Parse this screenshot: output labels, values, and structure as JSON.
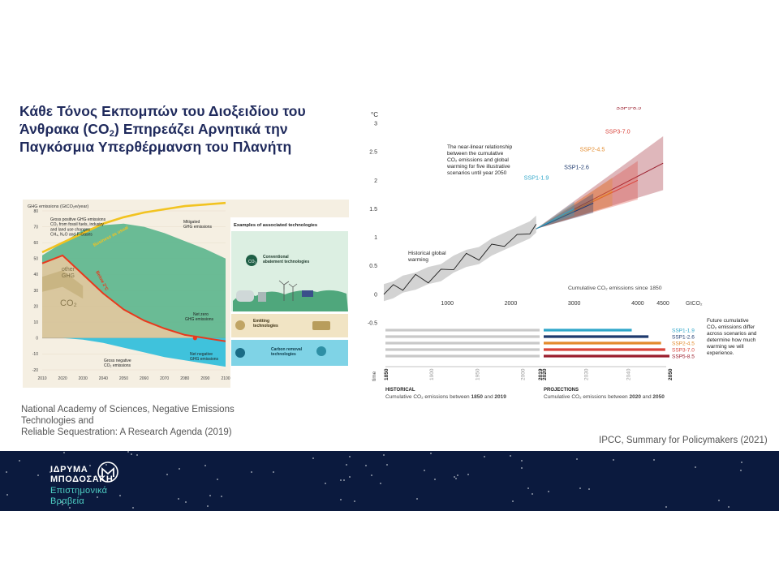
{
  "slide": {
    "title_part1": "Κάθε Τόνος Εκπομπών του Διοξειδίου του Άνθρακα (CO",
    "title_sub": "2",
    "title_part2": ") Επηρεάζει Αρνητικά την Παγκόσμια Υπερθέρμανση του Πλανήτη",
    "caption_left_1": "National Academy of Sciences, Negative Emissions",
    "caption_left_2": "Technologies and",
    "caption_left_3": "Reliable Sequestration: A Research Agenda (2019)",
    "caption_right": "IPCC, Summary for Policymakers (2021)"
  },
  "left_figure": {
    "ylabel": "GHG emissions (GtCO₂e/year)",
    "gross_positive": [
      "Gross positive GHG emissions",
      "CO₂ from fossil fuels, industry",
      "and land use changes",
      "CH₄, N₂O and F-Gases"
    ],
    "mitigated": [
      "Mitigated",
      "GHG emissions"
    ],
    "other_ghg": [
      "other",
      "GHG"
    ],
    "co2_label": "CO₂",
    "bau_label": "Business as usual",
    "below2_label": "Below 2°C",
    "net_zero": [
      "Net zero",
      "GHG emissions"
    ],
    "net_negative": [
      "Net negative",
      "GHG emissions"
    ],
    "gross_negative": [
      "Gross negative",
      "CO₂ emissions"
    ],
    "tech_header": "Examples of associated technologies",
    "tech_1": [
      "Conventional",
      "abatement technologies"
    ],
    "tech_2": [
      "Emitting",
      "technologies"
    ],
    "tech_3": [
      "Carbon removal",
      "technologies"
    ]
  },
  "right_figure": {
    "unit": "°C",
    "annotation": [
      "The near-linear relationship",
      "between the cumulative",
      "CO₂ emissions and global",
      "warming for five illustrative",
      "scenarios until year 2050"
    ],
    "historical_label": [
      "Historical global",
      "warming"
    ],
    "xaxis_caption": "Cumulative CO₂ emissions since 1850",
    "xunit": "GtCO₂",
    "future_note": [
      "Future cumulative",
      "CO₂ emissions differ",
      "across scenarios and",
      "determine how much",
      "warming we will",
      "experience."
    ],
    "time_label": "time",
    "historical_header": "HISTORICAL",
    "historical_caption_a": "Cumulative CO₂ emissions between ",
    "historical_caption_b": "1850",
    "historical_caption_c": " and ",
    "historical_caption_d": "2019",
    "projections_header": "PROJECTIONS",
    "projections_caption_a": "Cumulative CO₂ emissions between ",
    "projections_caption_b": "2020",
    "projections_caption_c": " and ",
    "projections_caption_d": "2050",
    "timeline_years": [
      "1850",
      "1900",
      "1950",
      "2000",
      "2019",
      "2020",
      "2030",
      "2040",
      "2050"
    ]
  },
  "chart_data": [
    {
      "type": "area",
      "title": "",
      "ylabel": "GHG emissions (GtCO₂e/year)",
      "x": [
        2010,
        2020,
        2030,
        2040,
        2050,
        2060,
        2070,
        2080,
        2090,
        2100
      ],
      "ylim": [
        -20,
        80
      ],
      "yticks": [
        -20,
        -10,
        0,
        10,
        20,
        30,
        40,
        50,
        60,
        70,
        80
      ],
      "series": [
        {
          "name": "Business as usual",
          "values": [
            54,
            60,
            66,
            72,
            76,
            79,
            81,
            83,
            84,
            85
          ]
        },
        {
          "name": "Gross positive GHG emissions",
          "values": [
            52,
            60,
            68,
            71,
            72,
            70,
            66,
            61,
            56,
            50
          ]
        },
        {
          "name": "Below 2°C",
          "values": [
            47,
            52,
            40,
            28,
            18,
            11,
            6,
            2,
            0,
            -2
          ]
        },
        {
          "name": "Gross negative CO₂ emissions",
          "values": [
            0,
            0,
            -1,
            -3,
            -6,
            -9,
            -12,
            -14,
            -16,
            -18
          ]
        }
      ]
    },
    {
      "type": "line",
      "title": "",
      "xlabel": "Cumulative CO₂ emissions since 1850",
      "ylabel": "°C",
      "xlim": [
        0,
        4500
      ],
      "ylim": [
        -0.5,
        3
      ],
      "xticks": [
        1000,
        2000,
        3000,
        4000,
        4500
      ],
      "yticks": [
        -0.5,
        0,
        0.5,
        1,
        1.5,
        2,
        2.5,
        3
      ],
      "series": [
        {
          "name": "Historical global warming",
          "x": [
            0,
            150,
            300,
            500,
            700,
            900,
            1100,
            1300,
            1500,
            1700,
            1900,
            2100,
            2300,
            2400
          ],
          "y": [
            0.0,
            0.05,
            0.15,
            0.2,
            0.3,
            0.35,
            0.5,
            0.6,
            0.65,
            0.8,
            0.9,
            1.0,
            1.1,
            1.2
          ]
        },
        {
          "name": "SSP1-1.9",
          "x": [
            2400,
            2700,
            3000
          ],
          "y": [
            1.15,
            1.35,
            1.5
          ]
        },
        {
          "name": "SSP1-2.6",
          "x": [
            2400,
            2900,
            3300
          ],
          "y": [
            1.15,
            1.4,
            1.6
          ]
        },
        {
          "name": "SSP2-4.5",
          "x": [
            2400,
            3000,
            3600
          ],
          "y": [
            1.15,
            1.45,
            1.8
          ]
        },
        {
          "name": "SSP3-7.0",
          "x": [
            2400,
            3200,
            4000
          ],
          "y": [
            1.15,
            1.55,
            2.0
          ]
        },
        {
          "name": "SSP5-8.5",
          "x": [
            2400,
            3300,
            4400
          ],
          "y": [
            1.15,
            1.6,
            2.3
          ]
        }
      ]
    }
  ],
  "footer": {
    "logo_line1": "ΙΔΡΥΜΑ",
    "logo_line2": "ΜΠΟΔΟΣΑΚΗ",
    "logo_line3": "Επιστημονικά",
    "logo_line4": "Βραβεία",
    "bg_color": "#0b1a3e",
    "accent_color": "#4fd1c5"
  }
}
